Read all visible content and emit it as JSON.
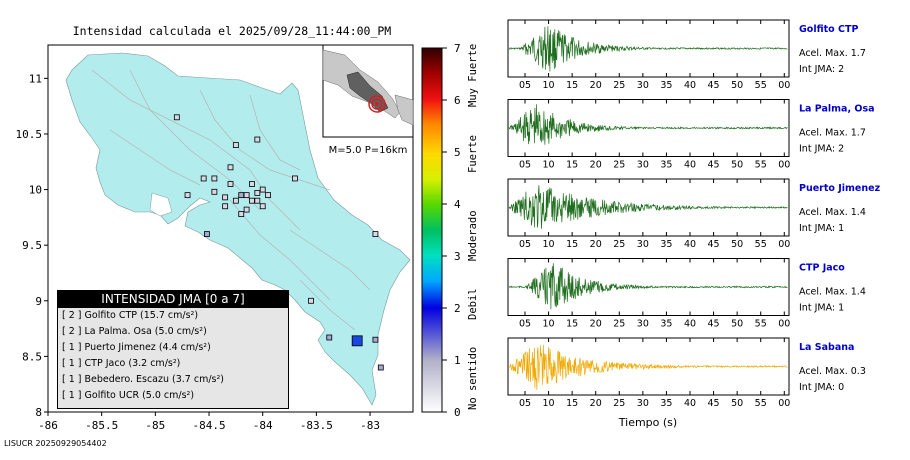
{
  "title": "Intensidad calculada el 2025/09/28_11:44:00_PM",
  "map": {
    "x_ticks": [
      "-86",
      "-85.5",
      "-85",
      "-84.5",
      "-84",
      "-83.5",
      "-83"
    ],
    "y_ticks": [
      "11",
      "10.5",
      "10",
      "9.5",
      "9",
      "8.5",
      "8"
    ],
    "inset_label": "M=5.0 P=16km"
  },
  "colorbar": {
    "ticks": [
      "0",
      "1",
      "2",
      "3",
      "4",
      "5",
      "6",
      "7"
    ],
    "labels": [
      "No sentido",
      "Debil",
      "Moderado",
      "Fuerte",
      "Muy Fuerte"
    ]
  },
  "legend": {
    "title": "INTENSIDAD JMA [0 a 7]",
    "items": [
      "[ 2 ]  Golfito CTP (15.7 cm/s²)",
      "[ 2 ]  La Palma. Osa (5.0 cm/s²)",
      "[ 1 ]  Puerto Jimenez (4.4 cm/s²)",
      "[ 1 ]  CTP Jaco (3.2 cm/s²)",
      "[ 1 ]  Bebedero. Escazu (3.7 cm/s²)",
      "[ 1 ]  Golfito UCR (5.0 cm/s²)"
    ]
  },
  "footer": "LISUCR 20250929054402",
  "chart_data": [
    {
      "type": "scatter",
      "xlim": [
        -86,
        -82.6
      ],
      "ylim": [
        8,
        11.3
      ],
      "title": "Intensidad calculada el 2025/09/28_11:44:00_PM",
      "epicenter": {
        "lon": -82.8,
        "lat": 8.55
      },
      "stations": [
        {
          "lon": -83.12,
          "lat": 8.64,
          "jma": 2
        },
        {
          "lon": -83.38,
          "lat": 8.67,
          "jma": 1
        },
        {
          "lon": -84.52,
          "lat": 9.6,
          "jma": 1
        },
        {
          "lon": -82.95,
          "lat": 8.65,
          "jma": 1
        },
        {
          "lon": -82.9,
          "lat": 8.4,
          "jma": 1
        },
        {
          "lon": -84.2,
          "lat": 9.95,
          "jma": 1
        },
        {
          "lon": -84.1,
          "lat": 9.9,
          "jma": 0
        },
        {
          "lon": -83.95,
          "lat": 9.95,
          "jma": 0
        },
        {
          "lon": -84.3,
          "lat": 10.05,
          "jma": 0
        },
        {
          "lon": -84.05,
          "lat": 9.9,
          "jma": 0
        },
        {
          "lon": -83.7,
          "lat": 10.1,
          "jma": 0
        },
        {
          "lon": -84.8,
          "lat": 10.65,
          "jma": 0
        },
        {
          "lon": -84.55,
          "lat": 10.1,
          "jma": 0
        },
        {
          "lon": -82.95,
          "lat": 9.6,
          "jma": 0
        },
        {
          "lon": -83.55,
          "lat": 9.0,
          "jma": 0
        }
      ]
    },
    {
      "type": "line",
      "xlabel": "Tiempo (s)",
      "x_ticks": [
        "05",
        "10",
        "15",
        "20",
        "25",
        "30",
        "35",
        "40",
        "45",
        "50",
        "55",
        "00"
      ],
      "series": [
        {
          "name": "Golfito CTP",
          "accel_label": "Acel. Max. 1.7",
          "int_label": "Int JMA: 2",
          "color": "#1e6e1e",
          "onset": 0.04,
          "peak": 0.45
        },
        {
          "name": "La Palma, Osa",
          "accel_label": "Acel. Max. 1.7",
          "int_label": "Int JMA: 2",
          "color": "#1e6e1e",
          "onset": 0.0,
          "peak": 0.42
        },
        {
          "name": "Puerto Jimenez",
          "accel_label": "Acel. Max. 1.4",
          "int_label": "Int JMA: 1",
          "color": "#1e6e1e",
          "onset": 0.0,
          "peak": 0.4
        },
        {
          "name": "CTP Jaco",
          "accel_label": "Acel. Max. 1.4",
          "int_label": "Int JMA: 1",
          "color": "#1e6e1e",
          "onset": 0.06,
          "peak": 0.43
        },
        {
          "name": "La Sabana",
          "accel_label": "Acel. Max. 0.3",
          "int_label": "Int JMA: 0",
          "color": "#f0a800",
          "onset": 0.0,
          "peak": 0.38
        }
      ]
    }
  ]
}
